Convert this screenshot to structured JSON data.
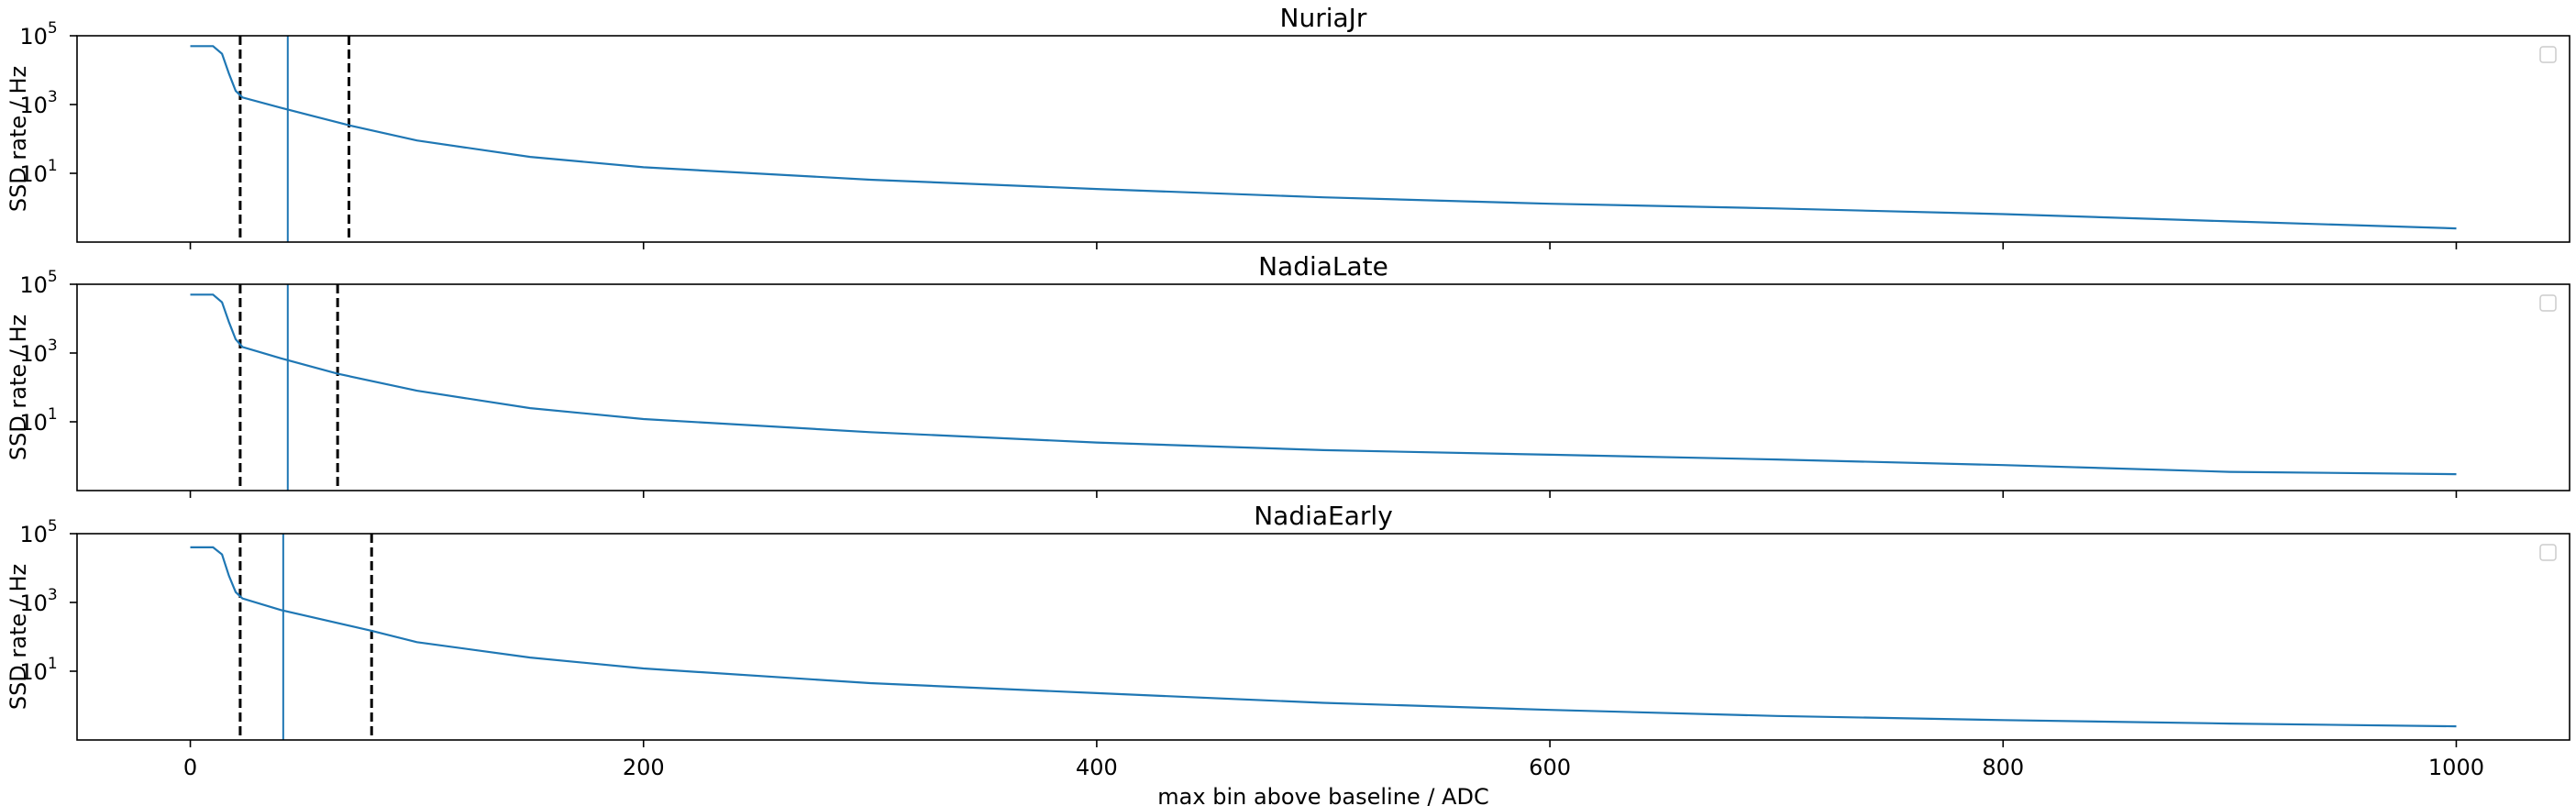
{
  "chart_data": [
    {
      "type": "line",
      "title": "NuriaJr",
      "ylabel": "SSD rate / Hz",
      "xlabel": "",
      "yscale": "log",
      "ylim": [
        0.1,
        100000
      ],
      "xlim": [
        -50,
        1050
      ],
      "yticks": [
        {
          "value": 1000,
          "base": "10",
          "exp": "3"
        },
        {
          "value": 10,
          "base": "10",
          "exp": "1"
        }
      ],
      "ytick_top": {
        "value": 100000,
        "base": "10",
        "exp": "5"
      },
      "xticks": [],
      "series": [
        {
          "x": [
            0,
            10,
            14,
            17,
            20,
            23,
            40,
            70,
            100,
            150,
            200,
            300,
            400,
            500,
            600,
            700,
            800,
            900,
            1000
          ],
          "y": [
            50000,
            50000,
            30000,
            8000,
            2500,
            1600,
            800,
            250,
            90,
            30,
            15,
            6.5,
            3.5,
            2,
            1.3,
            0.95,
            0.65,
            0.4,
            0.25
          ]
        }
      ],
      "vlines": [
        {
          "x": 22,
          "style": "dashed"
        },
        {
          "x": 43,
          "style": "solid"
        },
        {
          "x": 70,
          "style": "dashed"
        }
      ],
      "legend": "top-right"
    },
    {
      "type": "line",
      "title": "NadiaLate",
      "ylabel": "SSD rate / Hz",
      "xlabel": "",
      "yscale": "log",
      "ylim": [
        0.1,
        100000
      ],
      "xlim": [
        -50,
        1050
      ],
      "yticks": [
        {
          "value": 1000,
          "base": "10",
          "exp": "3"
        },
        {
          "value": 10,
          "base": "10",
          "exp": "1"
        }
      ],
      "ytick_top": {
        "value": 100000,
        "base": "10",
        "exp": "5"
      },
      "xticks": [],
      "series": [
        {
          "x": [
            0,
            10,
            14,
            17,
            20,
            23,
            40,
            65,
            100,
            150,
            200,
            300,
            400,
            500,
            600,
            700,
            800,
            900,
            1000
          ],
          "y": [
            50000,
            50000,
            30000,
            8000,
            2500,
            1500,
            700,
            250,
            80,
            25,
            12,
            5,
            2.5,
            1.5,
            1.1,
            0.8,
            0.55,
            0.35,
            0.3
          ]
        }
      ],
      "vlines": [
        {
          "x": 22,
          "style": "dashed"
        },
        {
          "x": 43,
          "style": "solid"
        },
        {
          "x": 65,
          "style": "dashed"
        }
      ],
      "legend": "top-right"
    },
    {
      "type": "line",
      "title": "NadiaEarly",
      "ylabel": "SSD rate / Hz",
      "xlabel": "max bin above baseline / ADC",
      "yscale": "log",
      "ylim": [
        0.1,
        100000
      ],
      "xlim": [
        -50,
        1050
      ],
      "yticks": [
        {
          "value": 1000,
          "base": "10",
          "exp": "3"
        },
        {
          "value": 10,
          "base": "10",
          "exp": "1"
        }
      ],
      "ytick_top": {
        "value": 100000,
        "base": "10",
        "exp": "5"
      },
      "xticks": [
        "0",
        "200",
        "400",
        "600",
        "800",
        "1000"
      ],
      "series": [
        {
          "x": [
            0,
            10,
            14,
            17,
            20,
            23,
            40,
            80,
            100,
            150,
            200,
            300,
            400,
            500,
            600,
            700,
            800,
            900,
            1000
          ],
          "y": [
            40000,
            40000,
            25000,
            6000,
            2000,
            1300,
            600,
            150,
            70,
            25,
            12,
            4.5,
            2.3,
            1.2,
            0.75,
            0.5,
            0.38,
            0.3,
            0.25
          ]
        }
      ],
      "vlines": [
        {
          "x": 22,
          "style": "dashed"
        },
        {
          "x": 41,
          "style": "solid"
        },
        {
          "x": 80,
          "style": "dashed"
        }
      ],
      "legend": "top-right"
    }
  ]
}
